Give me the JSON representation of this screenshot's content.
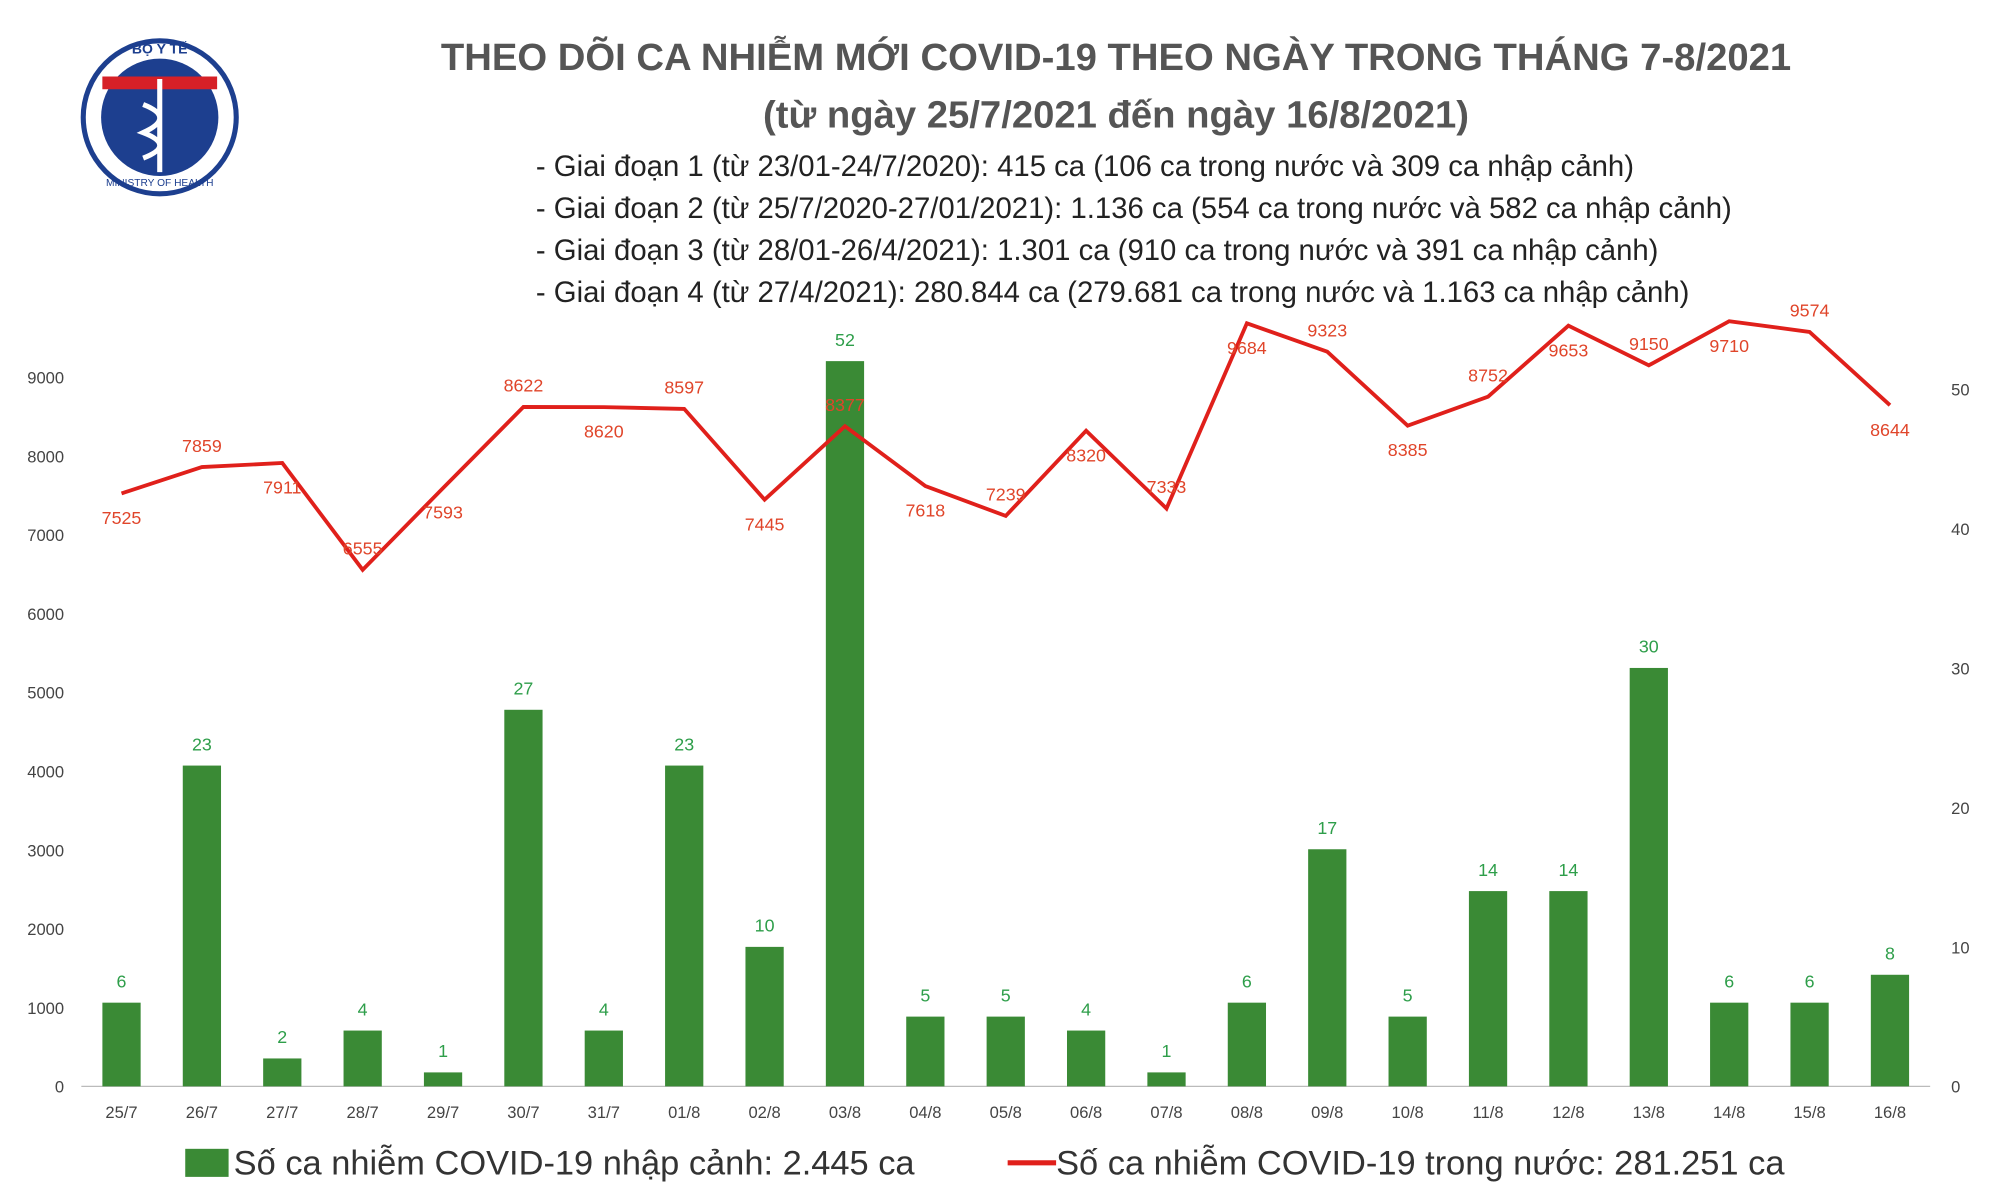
{
  "logo": {
    "top_text": "BỘ Y TẾ",
    "bottom_text": "MINISTRY OF HEALTH"
  },
  "chart_data": {
    "type": "bar",
    "title": "THEO DÕI CA NHIỄM MỚI COVID-19 THEO NGÀY TRONG THÁNG 7-8/2021",
    "subtitle": "(từ ngày 25/7/2021 đến ngày 16/8/2021)",
    "annotations": [
      "- Giai đoạn 1 (từ 23/01-24/7/2020): 415 ca (106 ca trong nước và 309 ca nhập cảnh)",
      "- Giai đoạn 2 (từ 25/7/2020-27/01/2021): 1.136 ca (554 ca trong nước và 582 ca nhập cảnh)",
      "- Giai đoạn 3 (từ 28/01-26/4/2021): 1.301 ca (910 ca trong nước và 391 ca nhập cảnh)",
      "- Giai đoạn 4 (từ 27/4/2021): 280.844 ca (279.681 ca trong nước và 1.163 ca nhập cảnh)"
    ],
    "categories": [
      "25/7",
      "26/7",
      "27/7",
      "28/7",
      "29/7",
      "30/7",
      "31/7",
      "01/8",
      "02/8",
      "03/8",
      "04/8",
      "05/8",
      "06/8",
      "07/8",
      "08/8",
      "09/8",
      "10/8",
      "11/8",
      "12/8",
      "13/8",
      "14/8",
      "15/8",
      "16/8"
    ],
    "series": [
      {
        "name": "Số ca nhiễm COVID-19 nhập cảnh: 2.445 ca",
        "type": "bar",
        "axis": "y2",
        "color": "#3a8a35",
        "label_color": "#2e9e4a",
        "values": [
          6,
          23,
          2,
          4,
          1,
          27,
          4,
          23,
          10,
          52,
          5,
          5,
          4,
          1,
          6,
          17,
          5,
          14,
          14,
          30,
          6,
          6,
          8
        ]
      },
      {
        "name": "Số ca nhiễm COVID-19 trong nước: 281.251 ca",
        "type": "line",
        "axis": "y",
        "color": "#e0201b",
        "label_color": "#e0452a",
        "values": [
          7525,
          7859,
          7911,
          6555,
          7593,
          8622,
          8620,
          8597,
          7445,
          8377,
          7618,
          7239,
          8320,
          7333,
          9684,
          9323,
          8385,
          8752,
          9653,
          9150,
          9710,
          9574,
          8644
        ]
      }
    ],
    "ylim": [
      0,
      10000
    ],
    "yticks": [
      0,
      1000,
      2000,
      3000,
      4000,
      5000,
      6000,
      7000,
      8000,
      9000
    ],
    "y2lim": [
      0,
      56.5
    ],
    "y2ticks": [
      0,
      10,
      20,
      30,
      40,
      50
    ],
    "grid": false,
    "legend": "bottom"
  }
}
